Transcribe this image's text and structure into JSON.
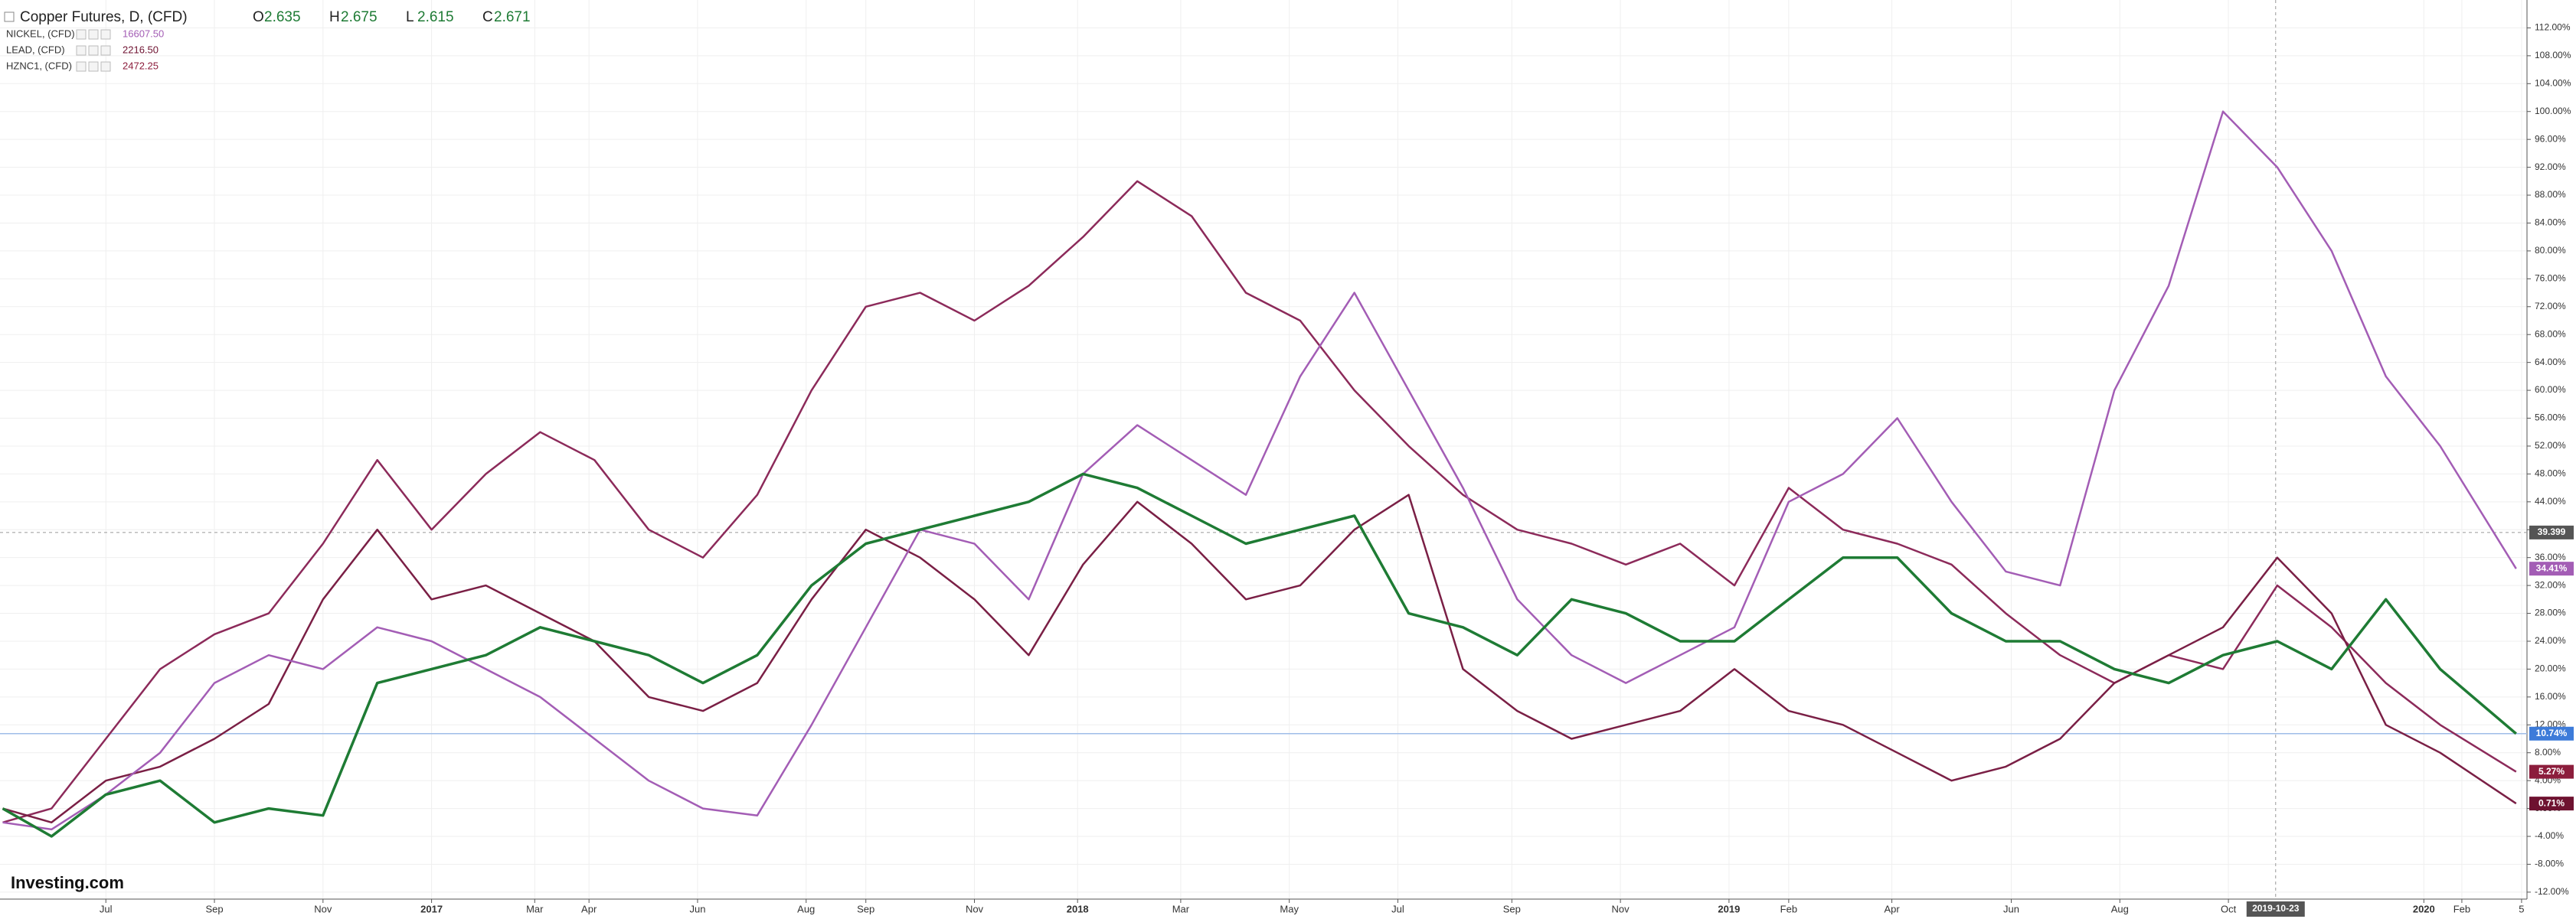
{
  "chart_data": {
    "type": "line",
    "ohlc": [
      {
        "label": "O",
        "value": 2.635
      },
      {
        "label": "H",
        "value": 2.675
      },
      {
        "label": "L",
        "value": 2.615
      },
      {
        "label": "C",
        "value": 2.671
      }
    ],
    "brand": "Investing.com",
    "x": [
      4.1,
      5,
      6,
      7,
      8,
      9,
      10,
      11,
      12,
      13,
      14,
      15,
      16,
      17,
      18,
      19,
      20,
      21,
      22,
      23,
      24,
      25,
      26,
      27,
      28,
      29,
      30,
      31,
      32,
      33,
      34,
      35,
      36,
      37,
      38,
      39,
      40,
      41,
      42,
      43,
      44,
      45,
      46,
      47,
      48,
      49,
      50.4
    ],
    "series": [
      {
        "name": "Copper Futures, D, (CFD)",
        "color": "#1e7b34",
        "label_color": "#3d7bd9",
        "last_label": "10.74%",
        "values": [
          0,
          -4,
          2,
          4,
          -2,
          0,
          -1,
          18,
          20,
          22,
          26,
          24,
          22,
          18,
          22,
          32,
          38,
          40,
          42,
          44,
          48,
          46,
          42,
          38,
          40,
          42,
          28,
          26,
          22,
          30,
          28,
          24,
          24,
          30,
          36,
          36,
          28,
          24,
          24,
          20,
          18,
          22,
          24,
          20,
          30,
          20,
          10.74
        ]
      },
      {
        "name": "NICKEL, (CFD)",
        "legend_value": "16607.50",
        "color": "#a35db5",
        "label_color": "#a35db5",
        "last_label": "34.41%",
        "values": [
          -2,
          -3,
          2,
          8,
          18,
          22,
          20,
          26,
          24,
          20,
          16,
          10,
          4,
          0,
          -1,
          12,
          26,
          40,
          38,
          30,
          48,
          55,
          50,
          45,
          62,
          74,
          60,
          46,
          30,
          22,
          18,
          22,
          26,
          44,
          48,
          56,
          44,
          34,
          32,
          60,
          75,
          100,
          92,
          80,
          62,
          52,
          34.41
        ]
      },
      {
        "name": "LEAD, (CFD)",
        "legend_value": "2216.50",
        "color": "#7a1f45",
        "label_color": "#6e1230",
        "last_label": "0.71%",
        "values": [
          0,
          -2,
          4,
          6,
          10,
          15,
          30,
          40,
          30,
          32,
          28,
          24,
          16,
          14,
          18,
          30,
          40,
          36,
          30,
          22,
          35,
          44,
          38,
          30,
          32,
          40,
          45,
          20,
          14,
          10,
          12,
          14,
          20,
          14,
          12,
          8,
          4,
          6,
          10,
          18,
          22,
          26,
          36,
          28,
          12,
          8,
          0.71
        ]
      },
      {
        "name": "HZNC1, (CFD)",
        "legend_value": "2472.25",
        "color": "#8c2a5a",
        "label_color": "#8c1d3c",
        "last_label": "5.27%",
        "values": [
          -2,
          0,
          10,
          20,
          25,
          28,
          38,
          50,
          40,
          48,
          54,
          50,
          40,
          36,
          45,
          60,
          72,
          74,
          70,
          75,
          82,
          90,
          85,
          74,
          70,
          60,
          52,
          45,
          40,
          38,
          35,
          38,
          32,
          46,
          40,
          38,
          35,
          28,
          22,
          18,
          22,
          20,
          32,
          26,
          18,
          12,
          5.27
        ]
      }
    ],
    "xlim": [
      4.05,
      50.6
    ],
    "xticks": [
      {
        "value": 6.0,
        "label": "Jul"
      },
      {
        "value": 8.0,
        "label": "Sep"
      },
      {
        "value": 10.0,
        "label": "Nov"
      },
      {
        "value": 12.0,
        "label": "2017"
      },
      {
        "value": 13.9,
        "label": "Mar"
      },
      {
        "value": 14.9,
        "label": "Apr"
      },
      {
        "value": 16.9,
        "label": "Jun"
      },
      {
        "value": 18.9,
        "label": "Aug"
      },
      {
        "value": 20.0,
        "label": "Sep"
      },
      {
        "value": 22.0,
        "label": "Nov"
      },
      {
        "value": 23.9,
        "label": "2018"
      },
      {
        "value": 25.8,
        "label": "Mar"
      },
      {
        "value": 27.8,
        "label": "May"
      },
      {
        "value": 29.8,
        "label": "Jul"
      },
      {
        "value": 31.9,
        "label": "Sep"
      },
      {
        "value": 33.9,
        "label": "Nov"
      },
      {
        "value": 35.9,
        "label": "2019"
      },
      {
        "value": 37.0,
        "label": "Feb"
      },
      {
        "value": 38.9,
        "label": "Apr"
      },
      {
        "value": 41.1,
        "label": "Jun"
      },
      {
        "value": 43.1,
        "label": "Aug"
      },
      {
        "value": 45.1,
        "label": "Oct"
      },
      {
        "value": 48.7,
        "label": "2020"
      },
      {
        "value": 49.4,
        "label": "Feb"
      },
      {
        "value": 50.5,
        "label": "5"
      }
    ],
    "ylim": [
      -13,
      116
    ],
    "yticks": [
      {
        "value": -12,
        "label": "-12.00%"
      },
      {
        "value": -8,
        "label": "-8.00%"
      },
      {
        "value": -4,
        "label": "-4.00%"
      },
      {
        "value": 0,
        "label": "0.00%"
      },
      {
        "value": 4,
        "label": "4.00%"
      },
      {
        "value": 8,
        "label": "8.00%"
      },
      {
        "value": 12,
        "label": "12.00%"
      },
      {
        "value": 16,
        "label": "16.00%"
      },
      {
        "value": 20,
        "label": "20.00%"
      },
      {
        "value": 24,
        "label": "24.00%"
      },
      {
        "value": 28,
        "label": "28.00%"
      },
      {
        "value": 32,
        "label": "32.00%"
      },
      {
        "value": 36,
        "label": "36.00%"
      },
      {
        "value": 40,
        "label": "40.00%"
      },
      {
        "value": 44,
        "label": "44.00%"
      },
      {
        "value": 48,
        "label": "48.00%"
      },
      {
        "value": 52,
        "label": "52.00%"
      },
      {
        "value": 56,
        "label": "56.00%"
      },
      {
        "value": 60,
        "label": "60.00%"
      },
      {
        "value": 64,
        "label": "64.00%"
      },
      {
        "value": 68,
        "label": "68.00%"
      },
      {
        "value": 72,
        "label": "72.00%"
      },
      {
        "value": 76,
        "label": "76.00%"
      },
      {
        "value": 80,
        "label": "80.00%"
      },
      {
        "value": 84,
        "label": "84.00%"
      },
      {
        "value": 88,
        "label": "88.00%"
      },
      {
        "value": 92,
        "label": "92.00%"
      },
      {
        "value": 96,
        "label": "96.00%"
      },
      {
        "value": 100,
        "label": "100.00%"
      },
      {
        "value": 104,
        "label": "104.00%"
      },
      {
        "value": 108,
        "label": "108.00%"
      },
      {
        "value": 112,
        "label": "112.00%"
      }
    ],
    "grid": true,
    "crosshair": {
      "x": 45.97,
      "x_label": "2019-10-23",
      "y": 39.6,
      "y_label": "39.399"
    }
  }
}
